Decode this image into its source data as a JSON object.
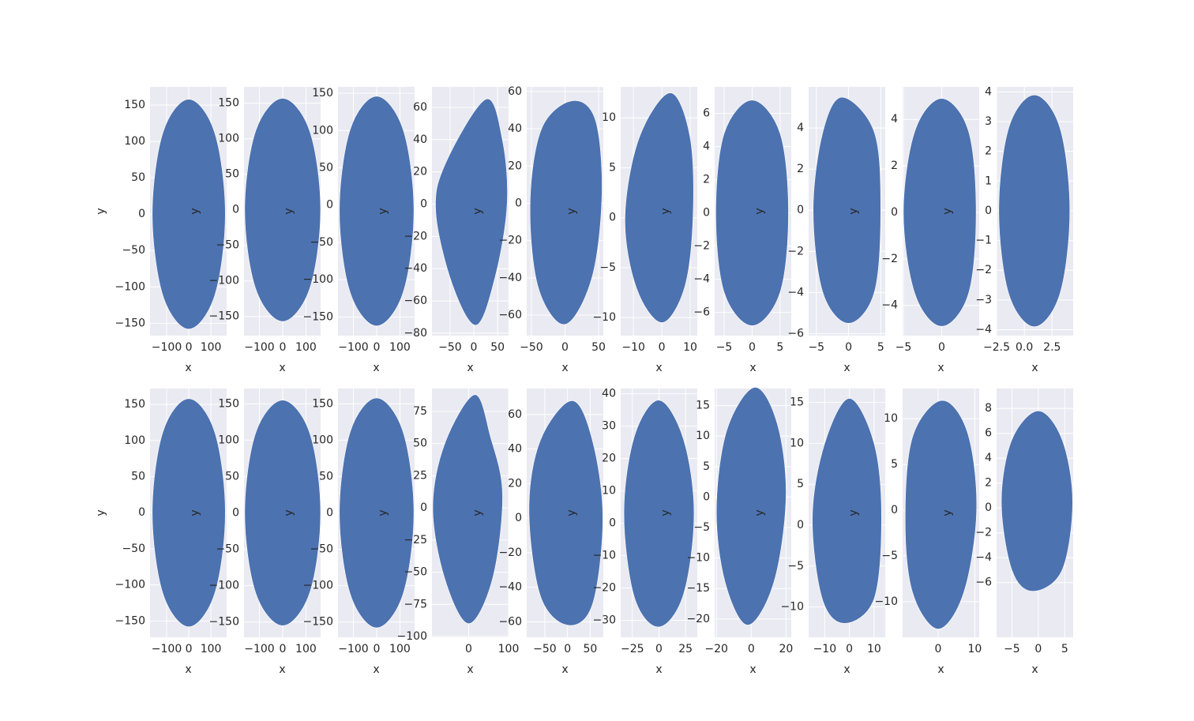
{
  "chart_data": [
    {
      "type": "scatter",
      "x_label": "x",
      "y_label": "y",
      "color": "#4c72b0",
      "grid": true,
      "xlim": [
        -175,
        171
      ],
      "ylim": [
        -167,
        175
      ],
      "xticks": [
        {
          "value": -100,
          "label": "−100"
        },
        0,
        100
      ],
      "yticks": [
        {
          "value": -150,
          "label": "−150"
        },
        {
          "value": -100,
          "label": "−100"
        },
        {
          "value": -50,
          "label": "−50"
        },
        0,
        50,
        100,
        150
      ],
      "x": [
        0,
        117,
        165,
        117,
        0,
        -117,
        -165,
        -117
      ],
      "y": [
        158,
        112,
        0,
        -112,
        -158,
        -112,
        0,
        112
      ]
    },
    {
      "type": "scatter",
      "x_label": "x",
      "y_label": "y",
      "color": "#4c72b0",
      "grid": true,
      "xlim": [
        -166,
        163
      ],
      "ylim": [
        -177,
        173
      ],
      "xticks": [
        {
          "value": -100,
          "label": "−100"
        },
        0,
        100
      ],
      "yticks": [
        {
          "value": -150,
          "label": "−150"
        },
        {
          "value": -100,
          "label": "−100"
        },
        {
          "value": -50,
          "label": "−50"
        },
        0,
        50,
        100,
        150
      ],
      "x": [
        0,
        116,
        163,
        116,
        0,
        -116,
        -163,
        -116
      ],
      "y": [
        157,
        111,
        0,
        -111,
        -157,
        -111,
        0,
        111
      ]
    },
    {
      "type": "scatter",
      "x_label": "x",
      "y_label": "y",
      "color": "#4c72b0",
      "grid": true,
      "xlim": [
        -166,
        163
      ],
      "ylim": [
        -175,
        158.5
      ],
      "xticks": [
        {
          "value": -100,
          "label": "−100"
        },
        0,
        100
      ],
      "yticks": [
        {
          "value": -150,
          "label": "−150"
        },
        {
          "value": -100,
          "label": "−100"
        },
        {
          "value": -50,
          "label": "−50"
        },
        0,
        50,
        100,
        150
      ],
      "x": [
        0,
        114,
        160,
        114,
        0,
        -114,
        -160,
        -114
      ],
      "y": [
        146,
        101,
        -8,
        -117,
        -162,
        -117,
        -8,
        101
      ]
    },
    {
      "type": "scatter",
      "x_label": "x",
      "y_label": "y",
      "color": "#4c72b0",
      "grid": true,
      "xlim": [
        -88,
        73
      ],
      "ylim": [
        -81.5,
        72.7
      ],
      "xticks": [
        {
          "value": -50,
          "label": "−50"
        },
        0,
        50
      ],
      "yticks": [
        {
          "value": -80,
          "label": "−80"
        },
        {
          "value": -60,
          "label": "−60"
        },
        {
          "value": -40,
          "label": "−40"
        },
        {
          "value": -20,
          "label": "−20"
        },
        0,
        20,
        40,
        60
      ],
      "x": [
        25,
        60,
        70,
        45,
        5,
        -45,
        -80,
        -60
      ],
      "y": [
        65,
        40,
        0,
        -45,
        -75,
        -50,
        -5,
        25
      ]
    },
    {
      "type": "scatter",
      "x_label": "x",
      "y_label": "y",
      "color": "#4c72b0",
      "grid": true,
      "xlim": [
        -57,
        57
      ],
      "ylim": [
        -71,
        62.5
      ],
      "xticks": [
        {
          "value": -50,
          "label": "−50"
        },
        0,
        50
      ],
      "yticks": [
        {
          "value": -60,
          "label": "−60"
        },
        {
          "value": -40,
          "label": "−40"
        },
        {
          "value": -20,
          "label": "−20"
        },
        0,
        20,
        40,
        60
      ],
      "x": [
        10,
        45,
        55,
        40,
        0,
        -40,
        -52,
        -35
      ],
      "y": [
        55,
        45,
        5,
        -40,
        -65,
        -45,
        0,
        40
      ]
    },
    {
      "type": "scatter",
      "x_label": "x",
      "y_label": "y",
      "color": "#4c72b0",
      "grid": true,
      "xlim": [
        -14.5,
        12.5
      ],
      "ylim": [
        -11.8,
        13.1
      ],
      "xticks": [
        {
          "value": -10,
          "label": "−10"
        },
        0,
        10
      ],
      "yticks": [
        {
          "value": -10,
          "label": "−10"
        },
        {
          "value": -5,
          "label": "−5"
        },
        0,
        5,
        10
      ],
      "x": [
        3,
        10,
        11,
        8,
        0,
        -9,
        -13,
        -8
      ],
      "y": [
        12.5,
        8,
        0,
        -7,
        -10.5,
        -7,
        0,
        8
      ]
    },
    {
      "type": "scatter",
      "x_label": "x",
      "y_label": "y",
      "color": "#4c72b0",
      "grid": true,
      "xlim": [
        -6.7,
        7
      ],
      "ylim": [
        -7.4,
        7.6
      ],
      "xticks": [
        {
          "value": -5,
          "label": "−5"
        },
        0,
        5
      ],
      "yticks": [
        {
          "value": -6,
          "label": "−6"
        },
        {
          "value": -4,
          "label": "−4"
        },
        {
          "value": -2,
          "label": "−2"
        },
        0,
        2,
        4,
        6
      ],
      "x": [
        0,
        5,
        6.5,
        5,
        0,
        -5,
        -6.5,
        -5
      ],
      "y": [
        6.8,
        4.8,
        0,
        -4.8,
        -6.8,
        -4.8,
        0,
        4.8
      ]
    },
    {
      "type": "scatter",
      "x_label": "x",
      "y_label": "y",
      "color": "#4c72b0",
      "grid": true,
      "xlim": [
        -6.2,
        5.7
      ],
      "ylim": [
        -6.1,
        6
      ],
      "xticks": [
        {
          "value": -5,
          "label": "−5"
        },
        0,
        5
      ],
      "yticks": [
        {
          "value": -6,
          "label": "−6"
        },
        {
          "value": -4,
          "label": "−4"
        },
        {
          "value": -2,
          "label": "−2"
        },
        0,
        2,
        4
      ],
      "x": [
        -1,
        4,
        5,
        4,
        0,
        -4,
        -5.5,
        -4
      ],
      "y": [
        5.5,
        3.8,
        0,
        -4,
        -5.5,
        -4,
        0,
        3.8
      ]
    },
    {
      "type": "scatter",
      "x_label": "x",
      "y_label": "y",
      "color": "#4c72b0",
      "grid": true,
      "xlim": [
        -5.1,
        4.9
      ],
      "ylim": [
        -5.3,
        5.4
      ],
      "xticks": [
        {
          "value": -5,
          "label": "−5"
        },
        0,
        5
      ],
      "yticks": [
        {
          "value": -4,
          "label": "−4"
        },
        {
          "value": -2,
          "label": "−2"
        },
        0,
        2,
        4
      ],
      "x": [
        0,
        3.5,
        4.5,
        3.5,
        0,
        -3.5,
        -5,
        -3.5
      ],
      "y": [
        4.9,
        3.5,
        0,
        -3.5,
        -4.9,
        -3.5,
        0,
        3.5
      ]
    },
    {
      "type": "scatter",
      "x_label": "x",
      "y_label": "y",
      "color": "#4c72b0",
      "grid": true,
      "xlim": [
        -2.5,
        4.4
      ],
      "ylim": [
        -4.2,
        4.17
      ],
      "xticks": [
        {
          "value": -2.5,
          "label": "−2.5"
        },
        {
          "value": 0,
          "label": "0.0"
        },
        2.5
      ],
      "yticks": [
        {
          "value": -4,
          "label": "−4"
        },
        {
          "value": -3,
          "label": "−3"
        },
        {
          "value": -2,
          "label": "−2"
        },
        {
          "value": -1,
          "label": "−1"
        },
        0,
        1,
        2,
        3,
        4
      ],
      "x": [
        0.9,
        3.2,
        4.1,
        3.2,
        0.9,
        -1.4,
        -2.3,
        -1.4
      ],
      "y": [
        3.9,
        2.8,
        0,
        -2.8,
        -3.9,
        -2.8,
        0,
        2.8
      ]
    },
    {
      "type": "scatter",
      "x_label": "x",
      "y_label": "y",
      "color": "#4c72b0",
      "grid": true,
      "xlim": [
        -175,
        171
      ],
      "ylim": [
        -172.6,
        172
      ],
      "xticks": [
        {
          "value": -100,
          "label": "−100"
        },
        0,
        100
      ],
      "yticks": [
        {
          "value": -150,
          "label": "−150"
        },
        {
          "value": -100,
          "label": "−100"
        },
        {
          "value": -50,
          "label": "−50"
        },
        0,
        50,
        100,
        150
      ],
      "x": [
        0,
        117,
        165,
        117,
        0,
        -117,
        -165,
        -117
      ],
      "y": [
        158,
        112,
        0,
        -112,
        -158,
        -112,
        0,
        112
      ]
    },
    {
      "type": "scatter",
      "x_label": "x",
      "y_label": "y",
      "color": "#4c72b0",
      "grid": true,
      "xlim": [
        -166,
        163
      ],
      "ylim": [
        -171,
        171
      ],
      "xticks": [
        {
          "value": -100,
          "label": "−100"
        },
        0,
        100
      ],
      "yticks": [
        {
          "value": -150,
          "label": "−150"
        },
        {
          "value": -100,
          "label": "−100"
        },
        {
          "value": -50,
          "label": "−50"
        },
        0,
        50,
        100,
        150
      ],
      "x": [
        0,
        116,
        163,
        116,
        0,
        -116,
        -163,
        -116
      ],
      "y": [
        155,
        110,
        0,
        -110,
        -155,
        -110,
        0,
        110
      ]
    },
    {
      "type": "scatter",
      "x_label": "x",
      "y_label": "y",
      "color": "#4c72b0",
      "grid": true,
      "xlim": [
        -166,
        163
      ],
      "ylim": [
        -171,
        171
      ],
      "xticks": [
        {
          "value": -100,
          "label": "−100"
        },
        0,
        100
      ],
      "yticks": [
        {
          "value": -150,
          "label": "−150"
        },
        {
          "value": -100,
          "label": "−100"
        },
        {
          "value": -50,
          "label": "−50"
        },
        0,
        50,
        100,
        150
      ],
      "x": [
        0,
        113,
        160,
        113,
        0,
        -113,
        -160,
        -113
      ],
      "y": [
        158,
        112,
        0,
        -112,
        -158,
        -112,
        0,
        112
      ]
    },
    {
      "type": "scatter",
      "x_label": "x",
      "y_label": "y",
      "color": "#4c72b0",
      "grid": true,
      "xlim": [
        -92,
        100
      ],
      "ylim": [
        -100.6,
        92.8
      ],
      "xticks": [
        0,
        100
      ],
      "yticks": [
        {
          "value": -100,
          "label": "−100"
        },
        {
          "value": -75,
          "label": "−75"
        },
        {
          "value": -50,
          "label": "−50"
        },
        {
          "value": -25,
          "label": "−25"
        },
        0,
        25,
        50,
        75
      ],
      "x": [
        15,
        55,
        85,
        60,
        0,
        -60,
        -90,
        -60
      ],
      "y": [
        88,
        55,
        10,
        -55,
        -90,
        -55,
        0,
        50
      ]
    },
    {
      "type": "scatter",
      "x_label": "x",
      "y_label": "y",
      "color": "#4c72b0",
      "grid": true,
      "xlim": [
        -90,
        79
      ],
      "ylim": [
        -69,
        75
      ],
      "xticks": [
        {
          "value": -50,
          "label": "−50"
        },
        0,
        50
      ],
      "yticks": [
        {
          "value": -60,
          "label": "−60"
        },
        {
          "value": -40,
          "label": "−40"
        },
        {
          "value": -20,
          "label": "−20"
        },
        0,
        20,
        40,
        60
      ],
      "x": [
        10,
        55,
        78,
        55,
        0,
        -60,
        -85,
        -60
      ],
      "y": [
        68,
        45,
        0,
        -50,
        -62,
        -45,
        5,
        45
      ]
    },
    {
      "type": "scatter",
      "x_label": "x",
      "y_label": "y",
      "color": "#4c72b0",
      "grid": true,
      "xlim": [
        -36,
        36
      ],
      "ylim": [
        -35.2,
        41.6
      ],
      "xticks": [
        {
          "value": -25,
          "label": "−25"
        },
        0,
        25
      ],
      "yticks": [
        {
          "value": -30,
          "label": "−30"
        },
        {
          "value": -20,
          "label": "−20"
        },
        {
          "value": -10,
          "label": "−10"
        },
        0,
        10,
        20,
        30,
        40
      ],
      "x": [
        0,
        23,
        33,
        23,
        0,
        -23,
        -33,
        -23
      ],
      "y": [
        38,
        26,
        3,
        -22,
        -32,
        -23,
        3,
        27
      ]
    },
    {
      "type": "scatter",
      "x_label": "x",
      "y_label": "y",
      "color": "#4c72b0",
      "grid": true,
      "xlim": [
        -21,
        23
      ],
      "ylim": [
        -23,
        17.8
      ],
      "xticks": [
        {
          "value": -20,
          "label": "−20"
        },
        0,
        20
      ],
      "yticks": [
        {
          "value": -20,
          "label": "−20"
        },
        {
          "value": -15,
          "label": "−15"
        },
        {
          "value": -10,
          "label": "−10"
        },
        {
          "value": -5,
          "label": "−5"
        },
        0,
        5,
        10,
        15
      ],
      "x": [
        2,
        15,
        20,
        13,
        -2,
        -15,
        -20,
        -14
      ],
      "y": [
        18,
        12,
        0,
        -14,
        -21,
        -14,
        -2,
        11
      ]
    },
    {
      "type": "scatter",
      "x_label": "x",
      "y_label": "y",
      "color": "#4c72b0",
      "grid": true,
      "xlim": [
        -16.5,
        14.5
      ],
      "ylim": [
        -13.7,
        16.7
      ],
      "xticks": [
        {
          "value": -10,
          "label": "−10"
        },
        0,
        10
      ],
      "yticks": [
        {
          "value": -10,
          "label": "−10"
        },
        {
          "value": -5,
          "label": "−5"
        },
        0,
        5,
        10,
        15
      ],
      "x": [
        0,
        10,
        13,
        10,
        -2,
        -11,
        -15,
        -10
      ],
      "y": [
        15.5,
        10,
        1,
        -9,
        -12,
        -9,
        1,
        10
      ]
    },
    {
      "type": "scatter",
      "x_label": "x",
      "y_label": "y",
      "color": "#4c72b0",
      "grid": true,
      "xlim": [
        -9.7,
        11.2
      ],
      "ylim": [
        -13.9,
        13.3
      ],
      "xticks": [
        {
          "value": -10,
          "label": "−10"
        },
        0,
        10
      ],
      "yticks": [
        {
          "value": -10,
          "label": "−10"
        },
        {
          "value": -5,
          "label": "−5"
        },
        0,
        5,
        10
      ],
      "x": [
        1,
        8,
        10.5,
        7,
        0,
        -7,
        -9,
        -7
      ],
      "y": [
        12,
        8.5,
        0,
        -9,
        -13,
        -9,
        -1,
        8
      ]
    },
    {
      "type": "scatter",
      "x_label": "x",
      "y_label": "y",
      "color": "#4c72b0",
      "grid": true,
      "xlim": [
        -7.9,
        6.6
      ],
      "ylim": [
        -10.4,
        9.6
      ],
      "xticks": [
        {
          "value": -5,
          "label": "−5"
        },
        0,
        5
      ],
      "yticks": [
        {
          "value": -6,
          "label": "−6"
        },
        {
          "value": -4,
          "label": "−4"
        },
        {
          "value": -2,
          "label": "−2"
        },
        0,
        2,
        4,
        6,
        8
      ],
      "x": [
        0,
        4.5,
        6.5,
        4.5,
        -1,
        -5,
        -7,
        -5
      ],
      "y": [
        7.8,
        5.5,
        0.5,
        -5,
        -6.7,
        -5,
        0.5,
        5.5
      ]
    }
  ]
}
